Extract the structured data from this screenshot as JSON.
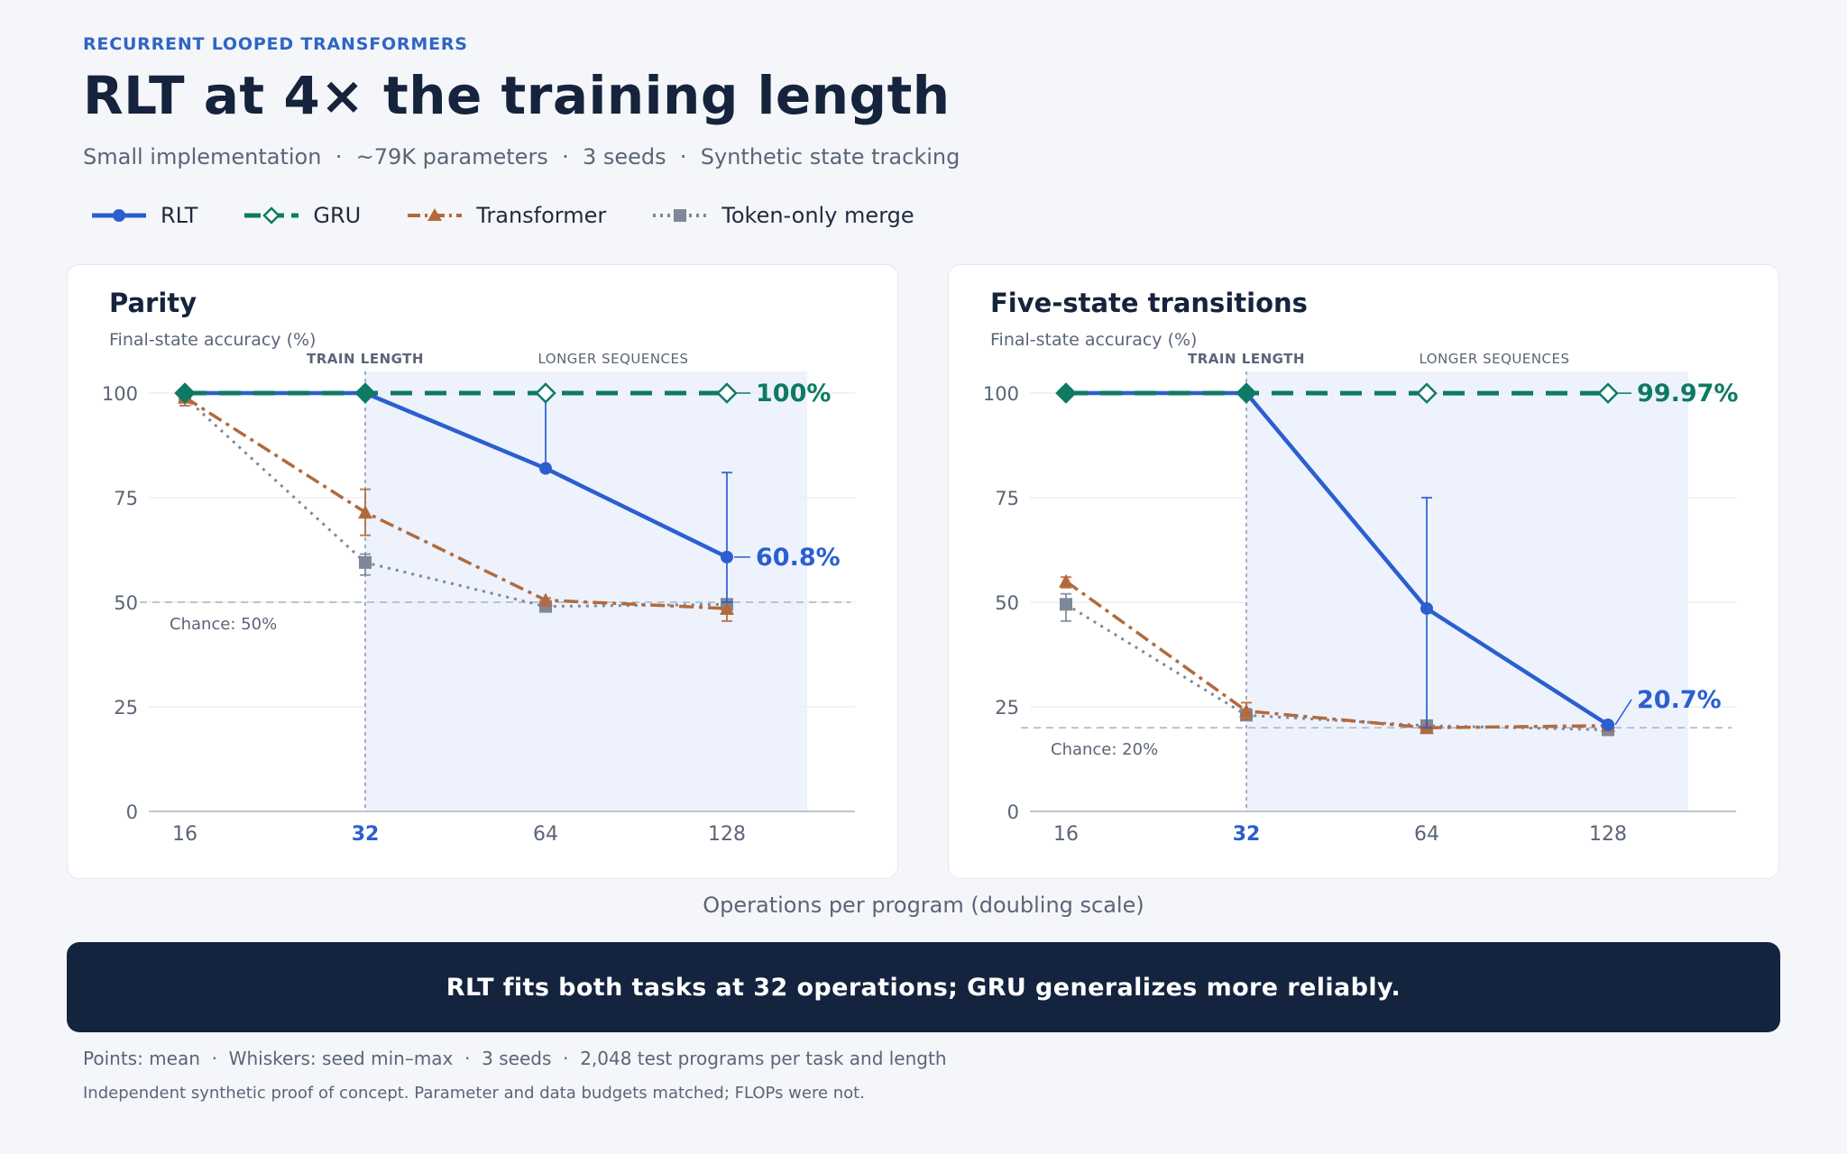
{
  "header": {
    "eyebrow": "RECURRENT LOOPED TRANSFORMERS",
    "title": "RLT at 4× the training length",
    "subtitle": "Small implementation  ·  ~79K parameters  ·  3 seeds  ·  Synthetic state tracking"
  },
  "legend": [
    {
      "key": "rlt",
      "label": "RLT"
    },
    {
      "key": "gru",
      "label": "GRU"
    },
    {
      "key": "transformer",
      "label": "Transformer"
    },
    {
      "key": "token",
      "label": "Token-only merge"
    }
  ],
  "colors": {
    "rlt": "#2b5fcf",
    "gru": "#0e7a63",
    "transformer": "#b26a3c",
    "token": "#7f8898",
    "highlight_band": "#edf2fd",
    "grid": "#eceff4",
    "axis": "#aab3c2"
  },
  "shared": {
    "xaxis_title": "Operations per program (doubling scale)",
    "train_length_label": "TRAIN LENGTH",
    "longer_label": "LONGER SEQUENCES"
  },
  "chart_data": [
    {
      "type": "line",
      "title": "Parity",
      "ylabel": "Final-state accuracy (%)",
      "xlabel": "Operations per program (doubling scale)",
      "x": [
        16,
        32,
        64,
        128
      ],
      "x_scale": "log2",
      "train_length": 32,
      "ylim": [
        0,
        100
      ],
      "yticks": [
        0,
        25,
        50,
        75,
        100
      ],
      "chance": 50,
      "chance_label": "Chance: 50%",
      "series": [
        {
          "name": "RLT",
          "key": "rlt",
          "values": [
            100,
            100,
            82,
            60.8
          ],
          "err_low": [
            100,
            100,
            82,
            50
          ],
          "err_high": [
            100,
            100,
            100,
            81
          ],
          "end_label": "60.8%"
        },
        {
          "name": "GRU",
          "key": "gru",
          "values": [
            100,
            100,
            100,
            100
          ],
          "err_low": [
            100,
            100,
            100,
            100
          ],
          "err_high": [
            100,
            100,
            100,
            100
          ],
          "end_label": "100%"
        },
        {
          "name": "Transformer",
          "key": "transformer",
          "values": [
            99,
            71.5,
            50.5,
            48.5
          ],
          "err_low": [
            97,
            66,
            49.5,
            45.5
          ],
          "err_high": [
            100,
            77,
            51,
            50
          ]
        },
        {
          "name": "Token-only merge",
          "key": "token",
          "values": [
            99,
            59.5,
            49,
            49.5
          ],
          "err_low": [
            98,
            56.5,
            48.5,
            48.5
          ],
          "err_high": [
            99.5,
            61.5,
            49.5,
            50
          ]
        }
      ]
    },
    {
      "type": "line",
      "title": "Five-state transitions",
      "ylabel": "Final-state accuracy (%)",
      "xlabel": "Operations per program (doubling scale)",
      "x": [
        16,
        32,
        64,
        128
      ],
      "x_scale": "log2",
      "train_length": 32,
      "ylim": [
        0,
        100
      ],
      "yticks": [
        0,
        25,
        50,
        75,
        100
      ],
      "chance": 20,
      "chance_label": "Chance: 20%",
      "series": [
        {
          "name": "RLT",
          "key": "rlt",
          "values": [
            100,
            100,
            48.5,
            20.7
          ],
          "err_low": [
            100,
            100,
            20,
            20.5
          ],
          "err_high": [
            100,
            100,
            75,
            21
          ],
          "end_label": "20.7%"
        },
        {
          "name": "GRU",
          "key": "gru",
          "values": [
            100,
            100,
            99.97,
            99.97
          ],
          "err_low": [
            100,
            100,
            99.9,
            99.9
          ],
          "err_high": [
            100,
            100,
            100,
            100
          ],
          "end_label": "99.97%"
        },
        {
          "name": "Transformer",
          "key": "transformer",
          "values": [
            55,
            24,
            20,
            20.5
          ],
          "err_low": [
            53.5,
            22,
            19.5,
            20
          ],
          "err_high": [
            56,
            26,
            20.5,
            21
          ]
        },
        {
          "name": "Token-only merge",
          "key": "token",
          "values": [
            49.5,
            23,
            20.5,
            19.5
          ],
          "err_low": [
            45.5,
            22,
            20,
            19
          ],
          "err_high": [
            52,
            24.5,
            21,
            20
          ]
        }
      ]
    }
  ],
  "banner": {
    "text": "RLT fits both tasks at 32 operations; GRU generalizes more reliably."
  },
  "footer": {
    "line1": "Points: mean  ·  Whiskers: seed min–max  ·  3 seeds  ·  2,048 test programs per task and length",
    "line2": "Independent synthetic proof of concept. Parameter and data budgets matched; FLOPs were not."
  }
}
